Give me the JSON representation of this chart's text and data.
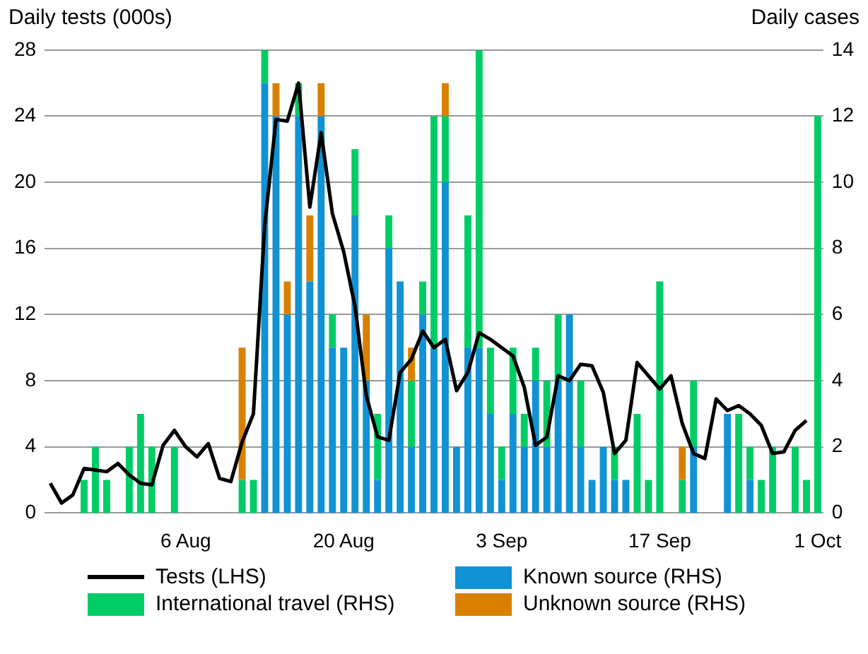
{
  "chart_data": {
    "type": "bar",
    "stacked": true,
    "ylabel": "Daily tests (000s)",
    "y2label": "Daily cases",
    "categories": [
      null,
      null,
      null,
      null,
      null,
      null,
      null,
      null,
      null,
      null,
      null,
      null,
      "6 Aug",
      null,
      null,
      null,
      null,
      null,
      null,
      null,
      null,
      null,
      null,
      null,
      null,
      null,
      "20 Aug",
      null,
      null,
      null,
      null,
      null,
      null,
      null,
      null,
      null,
      null,
      null,
      null,
      null,
      "3 Sep",
      null,
      null,
      null,
      null,
      null,
      null,
      null,
      null,
      null,
      null,
      null,
      null,
      null,
      "17 Sep",
      null,
      null,
      null,
      null,
      null,
      null,
      null,
      null,
      null,
      null,
      null,
      null,
      null,
      "1 Oct"
    ],
    "series": [
      {
        "name": "Tests (LHS)",
        "type": "line",
        "color": "#000000",
        "values": [
          1.8,
          0.6,
          1.1,
          2.7,
          2.6,
          2.5,
          3.0,
          2.3,
          1.8,
          1.7,
          4.1,
          5.0,
          4.0,
          3.4,
          4.2,
          2.1,
          1.9,
          4.3,
          6.0,
          17.4,
          23.8,
          23.7,
          26.0,
          18.5,
          23.0,
          18.1,
          15.8,
          12.5,
          7.1,
          4.6,
          4.4,
          8.5,
          9.3,
          11.0,
          10.0,
          10.5,
          7.4,
          8.5,
          10.9,
          10.5,
          10.0,
          9.5,
          7.6,
          4.1,
          4.6,
          8.3,
          8.0,
          9.0,
          8.9,
          7.3,
          3.6,
          4.4,
          9.1,
          8.3,
          7.5,
          8.3,
          5.4,
          3.6,
          3.3,
          6.9,
          6.2,
          6.5,
          6.0,
          5.3,
          3.6,
          3.7,
          5.0,
          5.6,
          null
        ]
      },
      {
        "name": "Known source (RHS)",
        "axis": "y2",
        "color": "#1192d4",
        "values": [
          null,
          null,
          null,
          null,
          null,
          null,
          null,
          null,
          null,
          null,
          null,
          null,
          null,
          null,
          null,
          null,
          null,
          null,
          null,
          13,
          12,
          6,
          12,
          7,
          12,
          5,
          5,
          9,
          4,
          1,
          8,
          7,
          2,
          6,
          5,
          10,
          2,
          5,
          5,
          3,
          1,
          3,
          2,
          4,
          2,
          4,
          6,
          2,
          1,
          2,
          1,
          1,
          null,
          null,
          null,
          null,
          null,
          2,
          null,
          null,
          3,
          null,
          1,
          null,
          null,
          null,
          null,
          null,
          null
        ]
      },
      {
        "name": "International travel (RHS)",
        "axis": "y2",
        "color": "#00cc66",
        "values": [
          null,
          null,
          null,
          1,
          2,
          1,
          null,
          2,
          3,
          2,
          null,
          2,
          null,
          null,
          null,
          null,
          null,
          1,
          1,
          1,
          null,
          null,
          1,
          null,
          null,
          1,
          null,
          2,
          null,
          2,
          1,
          null,
          2,
          1,
          7,
          2,
          null,
          4,
          9,
          2,
          1,
          2,
          1,
          1,
          2,
          2,
          null,
          2,
          null,
          null,
          1,
          null,
          3,
          1,
          7,
          null,
          1,
          2,
          null,
          null,
          null,
          3,
          1,
          1,
          2,
          null,
          2,
          1,
          12
        ]
      },
      {
        "name": "Unknown source (RHS)",
        "axis": "y2",
        "color": "#d98000",
        "values": [
          null,
          null,
          null,
          null,
          null,
          null,
          null,
          null,
          null,
          null,
          null,
          null,
          null,
          null,
          null,
          null,
          null,
          4,
          null,
          null,
          1,
          1,
          null,
          2,
          1,
          null,
          null,
          null,
          2,
          null,
          null,
          null,
          1,
          null,
          null,
          1,
          null,
          null,
          null,
          null,
          null,
          null,
          null,
          null,
          null,
          null,
          null,
          null,
          null,
          null,
          null,
          null,
          null,
          null,
          null,
          null,
          1,
          null,
          null,
          null,
          null,
          null,
          null,
          null,
          null,
          null,
          null,
          null,
          null
        ]
      }
    ],
    "ylim": [
      0,
      28
    ],
    "yticks": [
      0,
      4,
      8,
      12,
      16,
      20,
      24,
      28
    ],
    "y2lim": [
      0,
      14
    ],
    "y2ticks": [
      0,
      2,
      4,
      6,
      8,
      10,
      12,
      14
    ],
    "grid": "y",
    "legend": "bottom",
    "line_style": "solid",
    "marker": "none"
  }
}
